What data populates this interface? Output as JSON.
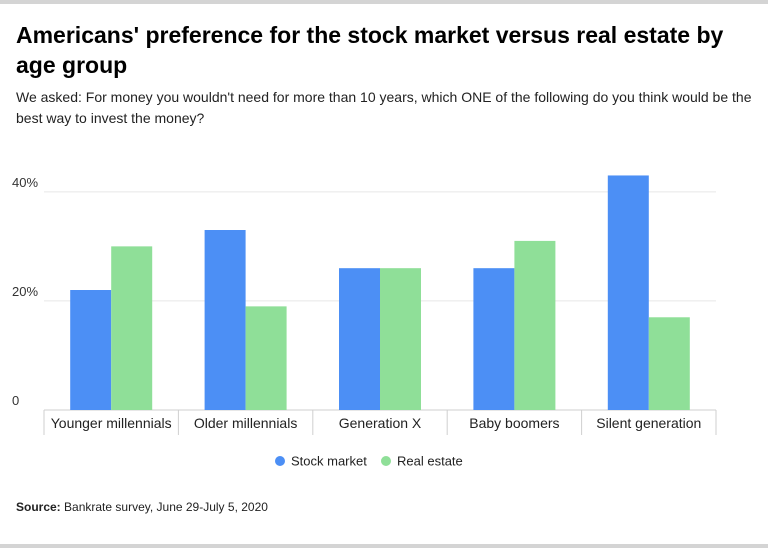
{
  "title": "Americans' preference for the stock market versus real estate by age group",
  "subtitle": "We asked: For money you wouldn't need for more than 10 years, which ONE of the following do you think would be the best way to invest the money?",
  "source": {
    "label": "Source:",
    "text": "Bankrate survey, June 29-July 5, 2020"
  },
  "chart_data": {
    "type": "bar",
    "categories": [
      "Younger millennials",
      "Older millennials",
      "Generation X",
      "Baby boomers",
      "Silent generation"
    ],
    "series": [
      {
        "name": "Stock market",
        "color": "#4c8ff5",
        "values": [
          22,
          33,
          26,
          26,
          43
        ]
      },
      {
        "name": "Real estate",
        "color": "#8fdf98",
        "values": [
          30,
          19,
          26,
          31,
          17
        ]
      }
    ],
    "y_ticks": [
      0,
      20,
      40
    ],
    "y_tick_labels": [
      "0",
      "20%",
      "40%"
    ],
    "ylim": [
      0,
      44
    ],
    "grid": true,
    "legend_position": "bottom-center"
  }
}
